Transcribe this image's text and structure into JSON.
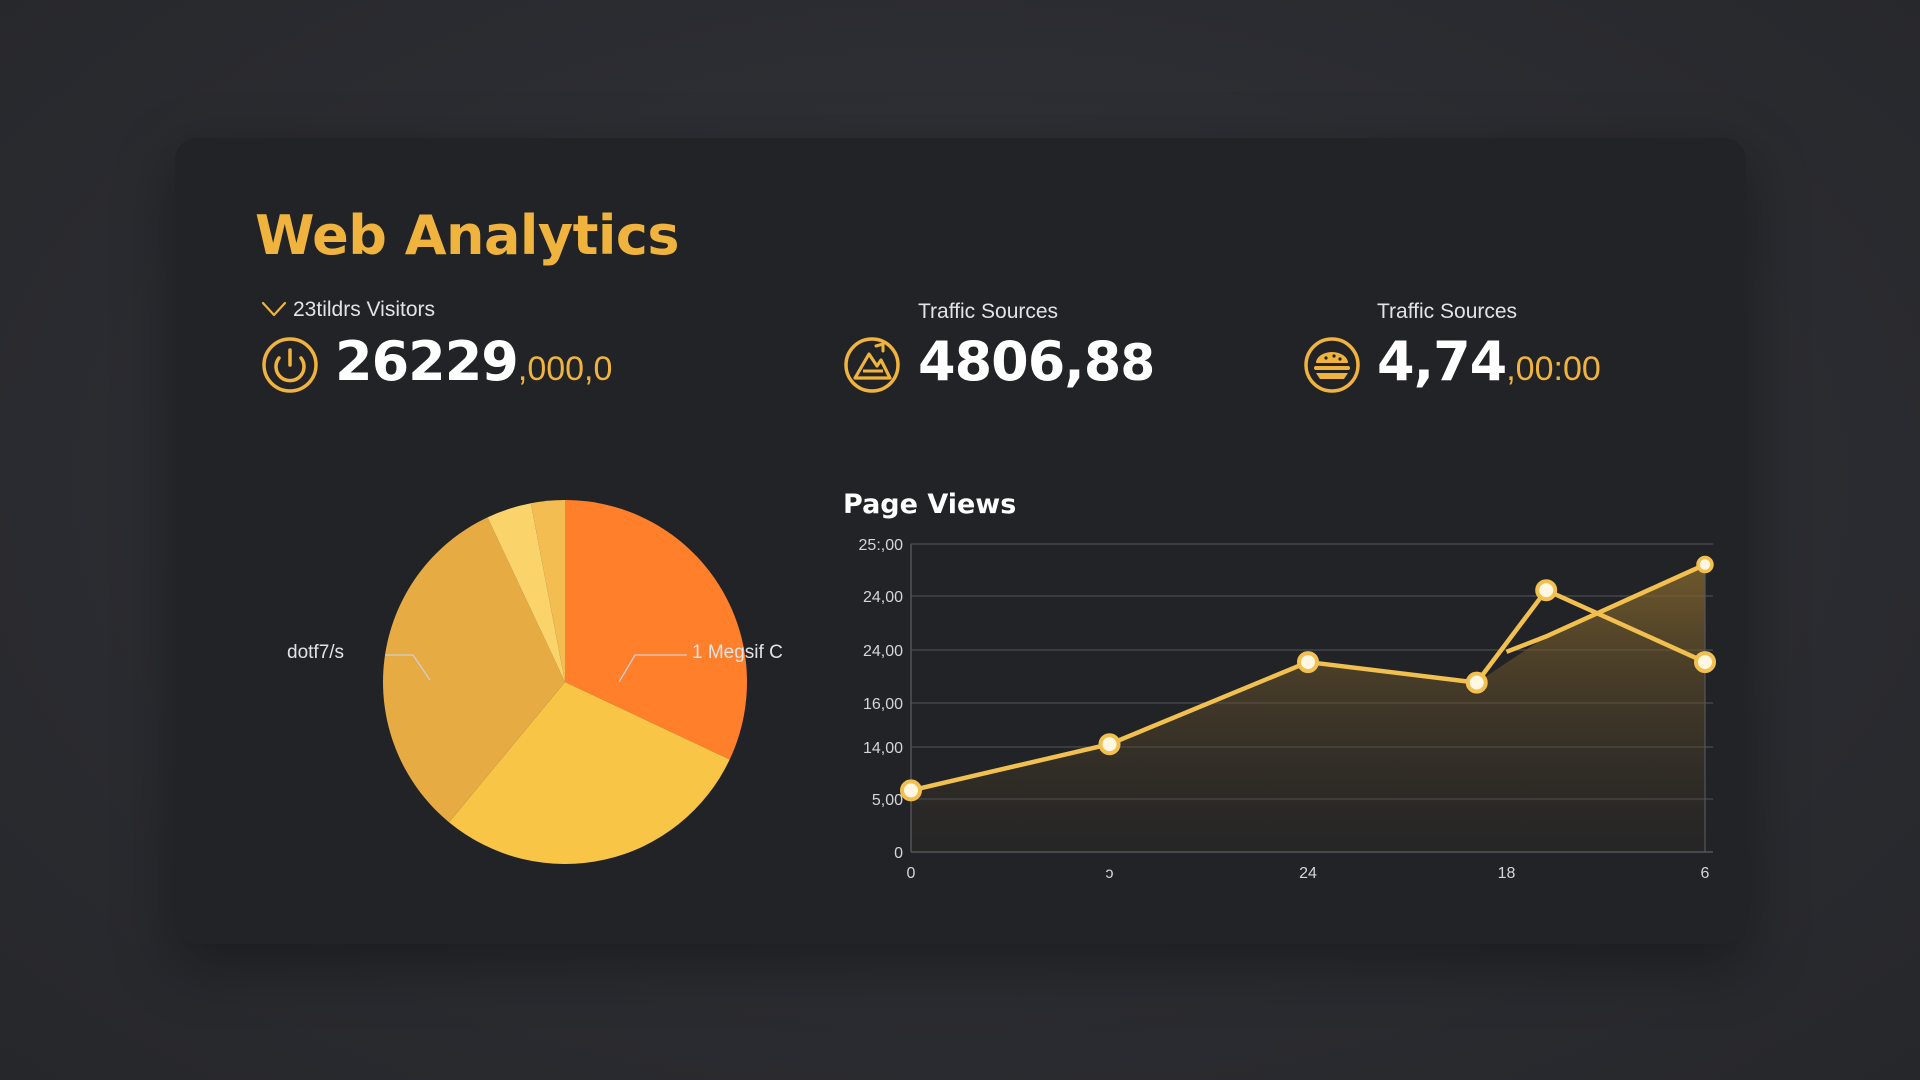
{
  "dashboard": {
    "title": "Web Analytics"
  },
  "stats": [
    {
      "label": "23tildrs Visitors",
      "value_main": "26229",
      "value_dec": ",000,0",
      "icon": "gauge-icon"
    },
    {
      "label": "Traffic Sources",
      "value_main": "4806,8",
      "value_dec": "8",
      "icon": "mountain-icon"
    },
    {
      "label": "Traffic Sources",
      "value_main": "4,74",
      "value_dec": ",00:00",
      "icon": "burger-icon"
    }
  ],
  "colors": {
    "accent": "#f0b43e",
    "card": "#222327",
    "orange": "#ff7f2a",
    "line": "#f2c04f"
  },
  "chart_data": [
    {
      "type": "pie",
      "title": "",
      "labels": [
        "dotf7/s",
        "1 Megsif C"
      ],
      "slices": [
        {
          "value": 32,
          "color": "#ff7f2a"
        },
        {
          "value": 29,
          "color": "#f8c547"
        },
        {
          "value": 32,
          "color": "#e6ab42"
        },
        {
          "value": 4,
          "color": "#fbd36b"
        },
        {
          "value": 3,
          "color": "#f3bd52"
        }
      ]
    },
    {
      "type": "line",
      "title": "Page Views",
      "x_ticks": [
        "0",
        "ɔ",
        "24",
        "18",
        "6"
      ],
      "y_ticks": [
        "0",
        "5,00",
        "14,00",
        "16,00",
        "24,00",
        "24,00",
        "25:,00"
      ],
      "series": [
        {
          "x": [
            0,
            1,
            2,
            2.85,
            3.2,
            4
          ],
          "y": [
            1.2,
            2.1,
            3.7,
            3.3,
            5.1,
            3.7
          ],
          "markers": [
            true,
            true,
            true,
            true,
            true,
            true
          ]
        },
        {
          "x": [
            3.2,
            4
          ],
          "y": [
            4.2,
            5.6
          ],
          "markers": [
            false,
            true
          ]
        }
      ],
      "xlim": [
        0,
        4
      ],
      "ylim": [
        0,
        6
      ],
      "grid": true
    }
  ]
}
